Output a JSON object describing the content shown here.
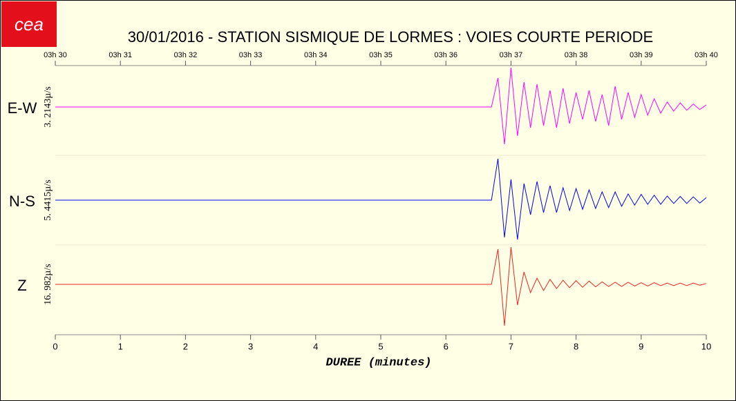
{
  "logo": {
    "text": "cea"
  },
  "chart_data": {
    "type": "line",
    "title": "30/01/2016  -  STATION SISMIQUE DE LORMES : VOIES COURTE PERIODE",
    "xlabel": "DUREE (minutes)",
    "xlim": [
      0,
      10
    ],
    "xticks": [
      0,
      1,
      2,
      3,
      4,
      5,
      6,
      7,
      8,
      9,
      10
    ],
    "x2ticks": [
      {
        "value": 0,
        "label": "03h 30"
      },
      {
        "value": 1,
        "label": "03h 31"
      },
      {
        "value": 2,
        "label": "03h 32"
      },
      {
        "value": 3,
        "label": "03h 33"
      },
      {
        "value": 4,
        "label": "03h 34"
      },
      {
        "value": 5,
        "label": "03h 35"
      },
      {
        "value": 6,
        "label": "03h 36"
      },
      {
        "value": 7,
        "label": "03h 37"
      },
      {
        "value": 8,
        "label": "03h 38"
      },
      {
        "value": 9,
        "label": "03h 39"
      },
      {
        "value": 10,
        "label": "03h 40"
      }
    ],
    "x": [
      0,
      6.7,
      6.8,
      6.9,
      7.0,
      7.1,
      7.2,
      7.3,
      7.4,
      7.5,
      7.6,
      7.7,
      7.8,
      7.9,
      8.0,
      8.1,
      8.2,
      8.3,
      8.4,
      8.5,
      8.6,
      8.7,
      8.8,
      8.9,
      9.0,
      9.1,
      9.2,
      9.3,
      9.4,
      9.5,
      9.6,
      9.7,
      9.8,
      9.9,
      10
    ],
    "series": [
      {
        "name": "E-W",
        "scale_label": "3. 2143µ/s",
        "color": "#ff00ff",
        "values": [
          0,
          0,
          0.7,
          -0.9,
          0.95,
          -0.7,
          0.6,
          -0.5,
          0.55,
          -0.45,
          0.4,
          -0.5,
          0.45,
          -0.4,
          0.35,
          -0.3,
          0.4,
          -0.35,
          0.3,
          -0.45,
          0.5,
          -0.3,
          0.35,
          -0.25,
          0.3,
          -0.2,
          0.2,
          -0.15,
          0.12,
          -0.1,
          0.1,
          -0.08,
          0.07,
          -0.06,
          0.05
        ]
      },
      {
        "name": "N-S",
        "scale_label": "5. 4415µ/s",
        "color": "#0000ee",
        "values": [
          0,
          0,
          1.0,
          -0.9,
          0.5,
          -0.95,
          0.4,
          -0.35,
          0.45,
          -0.3,
          0.35,
          -0.3,
          0.3,
          -0.25,
          0.28,
          -0.22,
          0.25,
          -0.2,
          0.2,
          -0.18,
          0.2,
          -0.15,
          0.15,
          -0.12,
          0.14,
          -0.1,
          0.12,
          -0.1,
          0.1,
          -0.08,
          0.09,
          -0.08,
          0.08,
          -0.07,
          0.06
        ]
      },
      {
        "name": "Z",
        "scale_label": "16. 982µ/s",
        "color": "#ee2222",
        "values": [
          0,
          0,
          0.85,
          -1.0,
          0.9,
          -0.5,
          0.3,
          -0.2,
          0.15,
          -0.15,
          0.12,
          -0.1,
          0.1,
          -0.08,
          0.09,
          -0.07,
          0.08,
          -0.06,
          0.06,
          -0.05,
          0.05,
          -0.05,
          0.05,
          -0.04,
          0.04,
          -0.04,
          0.04,
          -0.03,
          0.03,
          -0.03,
          0.03,
          -0.03,
          0.03,
          -0.02,
          0.02
        ]
      }
    ]
  }
}
